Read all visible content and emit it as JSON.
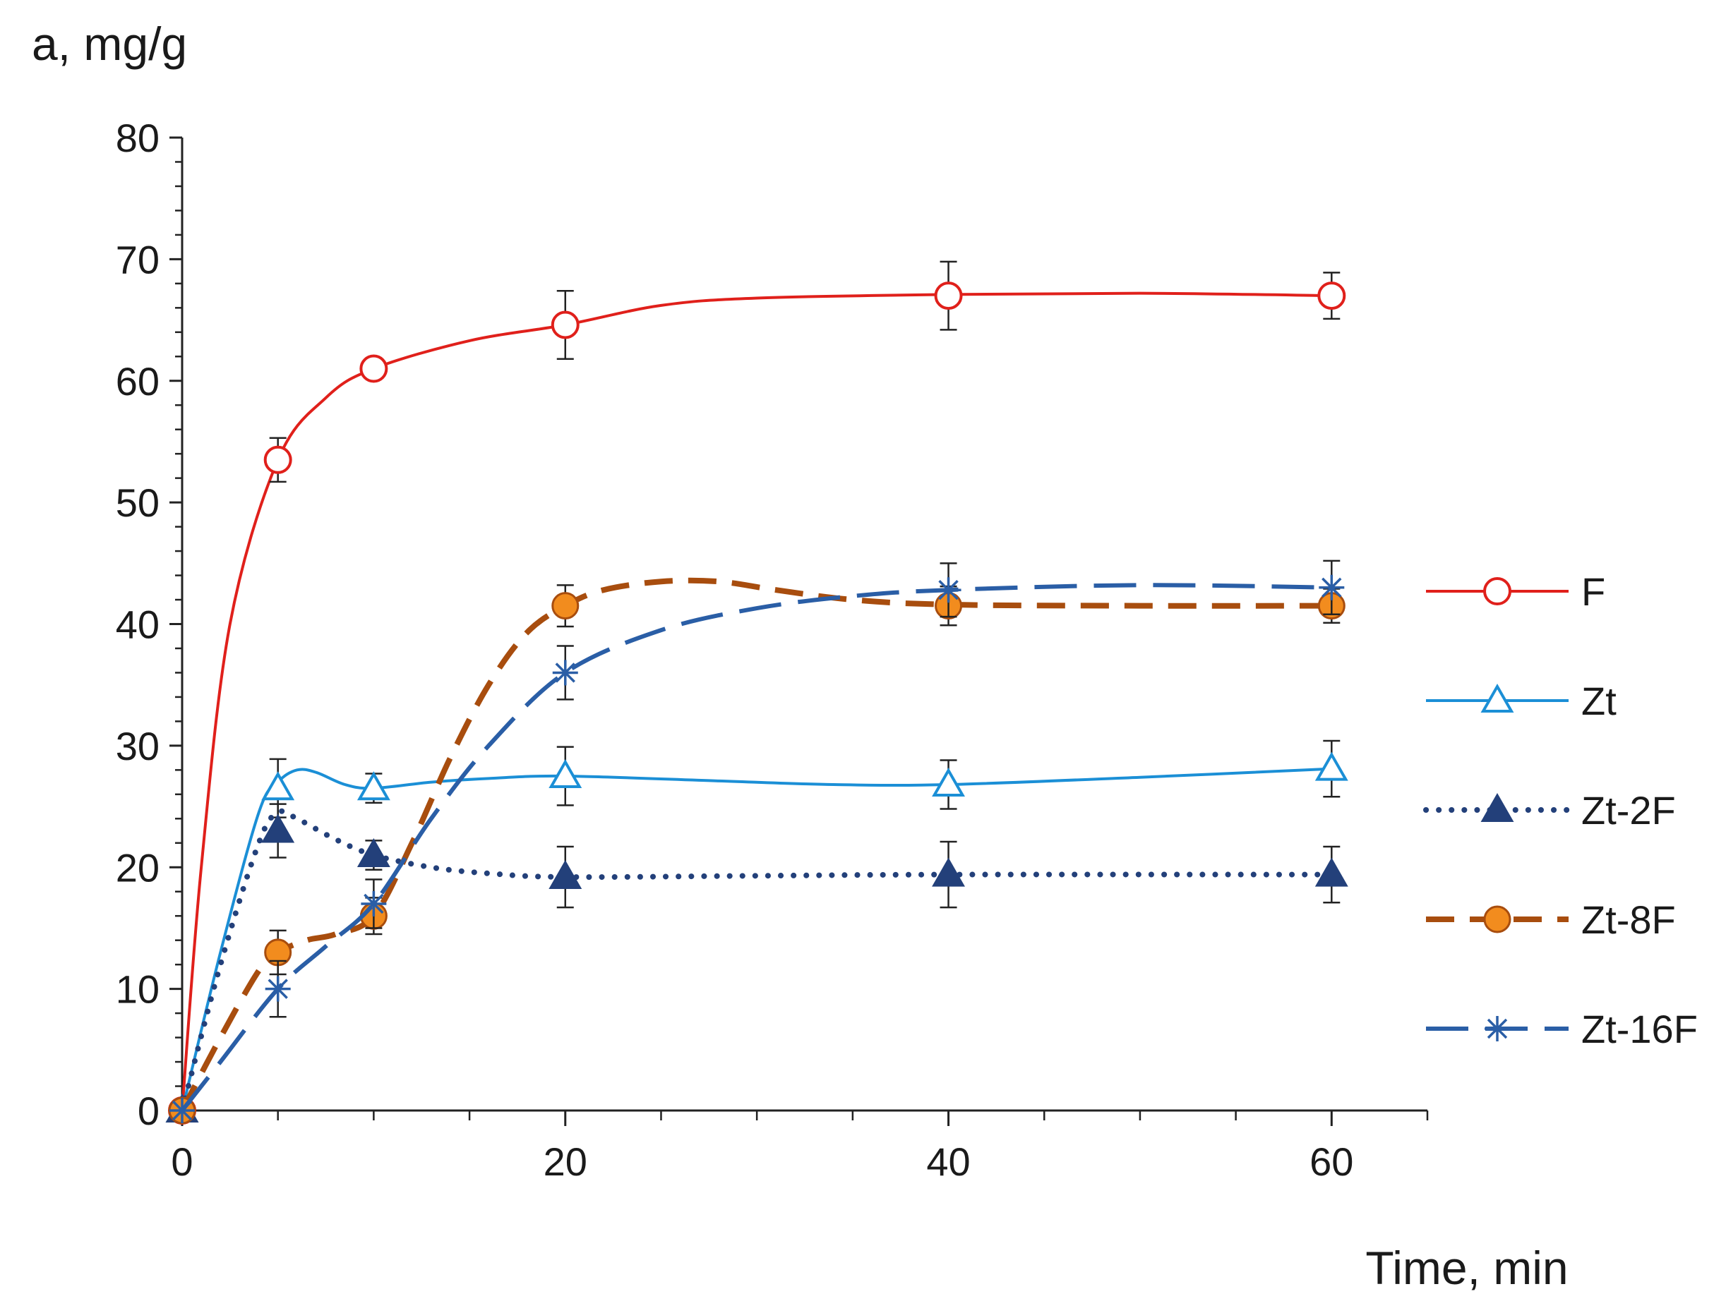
{
  "chart_data": {
    "type": "line",
    "title": "",
    "ylabel": "a, mg/g",
    "xlabel": "Time, min",
    "xlim": [
      0,
      65
    ],
    "ylim": [
      0,
      80
    ],
    "x_ticks": [
      0,
      20,
      40,
      60
    ],
    "x_minor_step": 5,
    "y_ticks": [
      0,
      10,
      20,
      30,
      40,
      50,
      60,
      70,
      80
    ],
    "y_minor_step": 2,
    "grid": false,
    "legend_position": "right",
    "series": [
      {
        "name": "F",
        "color": "#e0201b",
        "line": "solid",
        "marker": "circle-open",
        "x": [
          0,
          5,
          10,
          20,
          40,
          60
        ],
        "y": [
          0,
          53.5,
          61,
          64.6,
          67,
          67
        ],
        "err": [
          0,
          1.8,
          0,
          2.8,
          2.8,
          1.9
        ],
        "curve": [
          [
            0,
            0
          ],
          [
            1,
            20
          ],
          [
            2.5,
            40
          ],
          [
            5,
            53.5
          ],
          [
            7.5,
            58.6
          ],
          [
            10,
            61
          ],
          [
            15,
            63.3
          ],
          [
            20,
            64.6
          ],
          [
            25,
            66.2
          ],
          [
            30,
            66.8
          ],
          [
            40,
            67.1
          ],
          [
            50,
            67.2
          ],
          [
            60,
            67
          ]
        ]
      },
      {
        "name": "Zt",
        "color": "#1b8fd6",
        "line": "solid",
        "marker": "triangle-open",
        "x": [
          0,
          5,
          10,
          20,
          40,
          60
        ],
        "y": [
          0,
          26.5,
          26.5,
          27.5,
          26.8,
          28.1
        ],
        "err": [
          0,
          2.4,
          1.2,
          2.4,
          2.0,
          2.3
        ],
        "curve": [
          [
            0,
            0
          ],
          [
            2,
            13
          ],
          [
            4,
            24.5
          ],
          [
            5,
            27
          ],
          [
            6,
            28
          ],
          [
            7,
            27.8
          ],
          [
            8.5,
            26.8
          ],
          [
            10,
            26.5
          ],
          [
            13,
            27
          ],
          [
            16,
            27.3
          ],
          [
            20,
            27.5
          ],
          [
            28,
            27.1
          ],
          [
            34,
            26.8
          ],
          [
            40,
            26.8
          ],
          [
            50,
            27.4
          ],
          [
            60,
            28.1
          ]
        ]
      },
      {
        "name": "Zt-2F",
        "color": "#23407a",
        "line": "dotted",
        "marker": "triangle-filled",
        "x": [
          0,
          5,
          10,
          20,
          40,
          60
        ],
        "y": [
          0,
          23,
          21,
          19.2,
          19.4,
          19.4
        ],
        "err": [
          0,
          2.2,
          1.2,
          2.5,
          2.7,
          2.3
        ],
        "curve": [
          [
            0,
            0
          ],
          [
            2,
            12
          ],
          [
            4,
            22
          ],
          [
            5,
            24.5
          ],
          [
            6,
            24
          ],
          [
            8,
            22.3
          ],
          [
            10,
            21
          ],
          [
            13,
            20
          ],
          [
            16,
            19.5
          ],
          [
            20,
            19.2
          ],
          [
            30,
            19.3
          ],
          [
            40,
            19.4
          ],
          [
            60,
            19.4
          ]
        ]
      },
      {
        "name": "Zt-8F",
        "color": "#a84d0e",
        "marker_fill": "#f28c1e",
        "line": "dashed",
        "marker": "circle-filled",
        "x": [
          0,
          5,
          10,
          20,
          40,
          60
        ],
        "y": [
          0,
          13,
          16,
          41.5,
          41.5,
          41.5
        ],
        "err": [
          0,
          1.8,
          1.5,
          1.7,
          1.6,
          1.4
        ],
        "curve": [
          [
            0,
            0
          ],
          [
            2,
            6
          ],
          [
            4,
            11.5
          ],
          [
            5,
            13
          ],
          [
            6.5,
            14
          ],
          [
            8,
            14.5
          ],
          [
            10,
            16
          ],
          [
            12,
            22
          ],
          [
            14,
            29
          ],
          [
            16,
            35
          ],
          [
            18,
            39.3
          ],
          [
            20,
            41.5
          ],
          [
            22,
            42.8
          ],
          [
            25,
            43.5
          ],
          [
            28,
            43.5
          ],
          [
            31,
            42.8
          ],
          [
            35,
            42
          ],
          [
            40,
            41.6
          ],
          [
            50,
            41.5
          ],
          [
            60,
            41.5
          ]
        ]
      },
      {
        "name": "Zt-16F",
        "color": "#2a5ea6",
        "line": "longdash",
        "marker": "star",
        "x": [
          0,
          5,
          10,
          20,
          40,
          60
        ],
        "y": [
          0,
          10,
          17,
          36,
          42.8,
          43
        ],
        "err": [
          0,
          2.3,
          2.0,
          2.2,
          2.2,
          2.2
        ],
        "curve": [
          [
            0,
            0
          ],
          [
            2,
            4
          ],
          [
            5,
            10
          ],
          [
            7.5,
            13.5
          ],
          [
            10,
            17
          ],
          [
            13,
            24
          ],
          [
            16,
            30
          ],
          [
            20,
            36
          ],
          [
            25,
            39.5
          ],
          [
            30,
            41.3
          ],
          [
            35,
            42.3
          ],
          [
            40,
            42.8
          ],
          [
            50,
            43.2
          ],
          [
            60,
            43
          ]
        ]
      }
    ]
  }
}
